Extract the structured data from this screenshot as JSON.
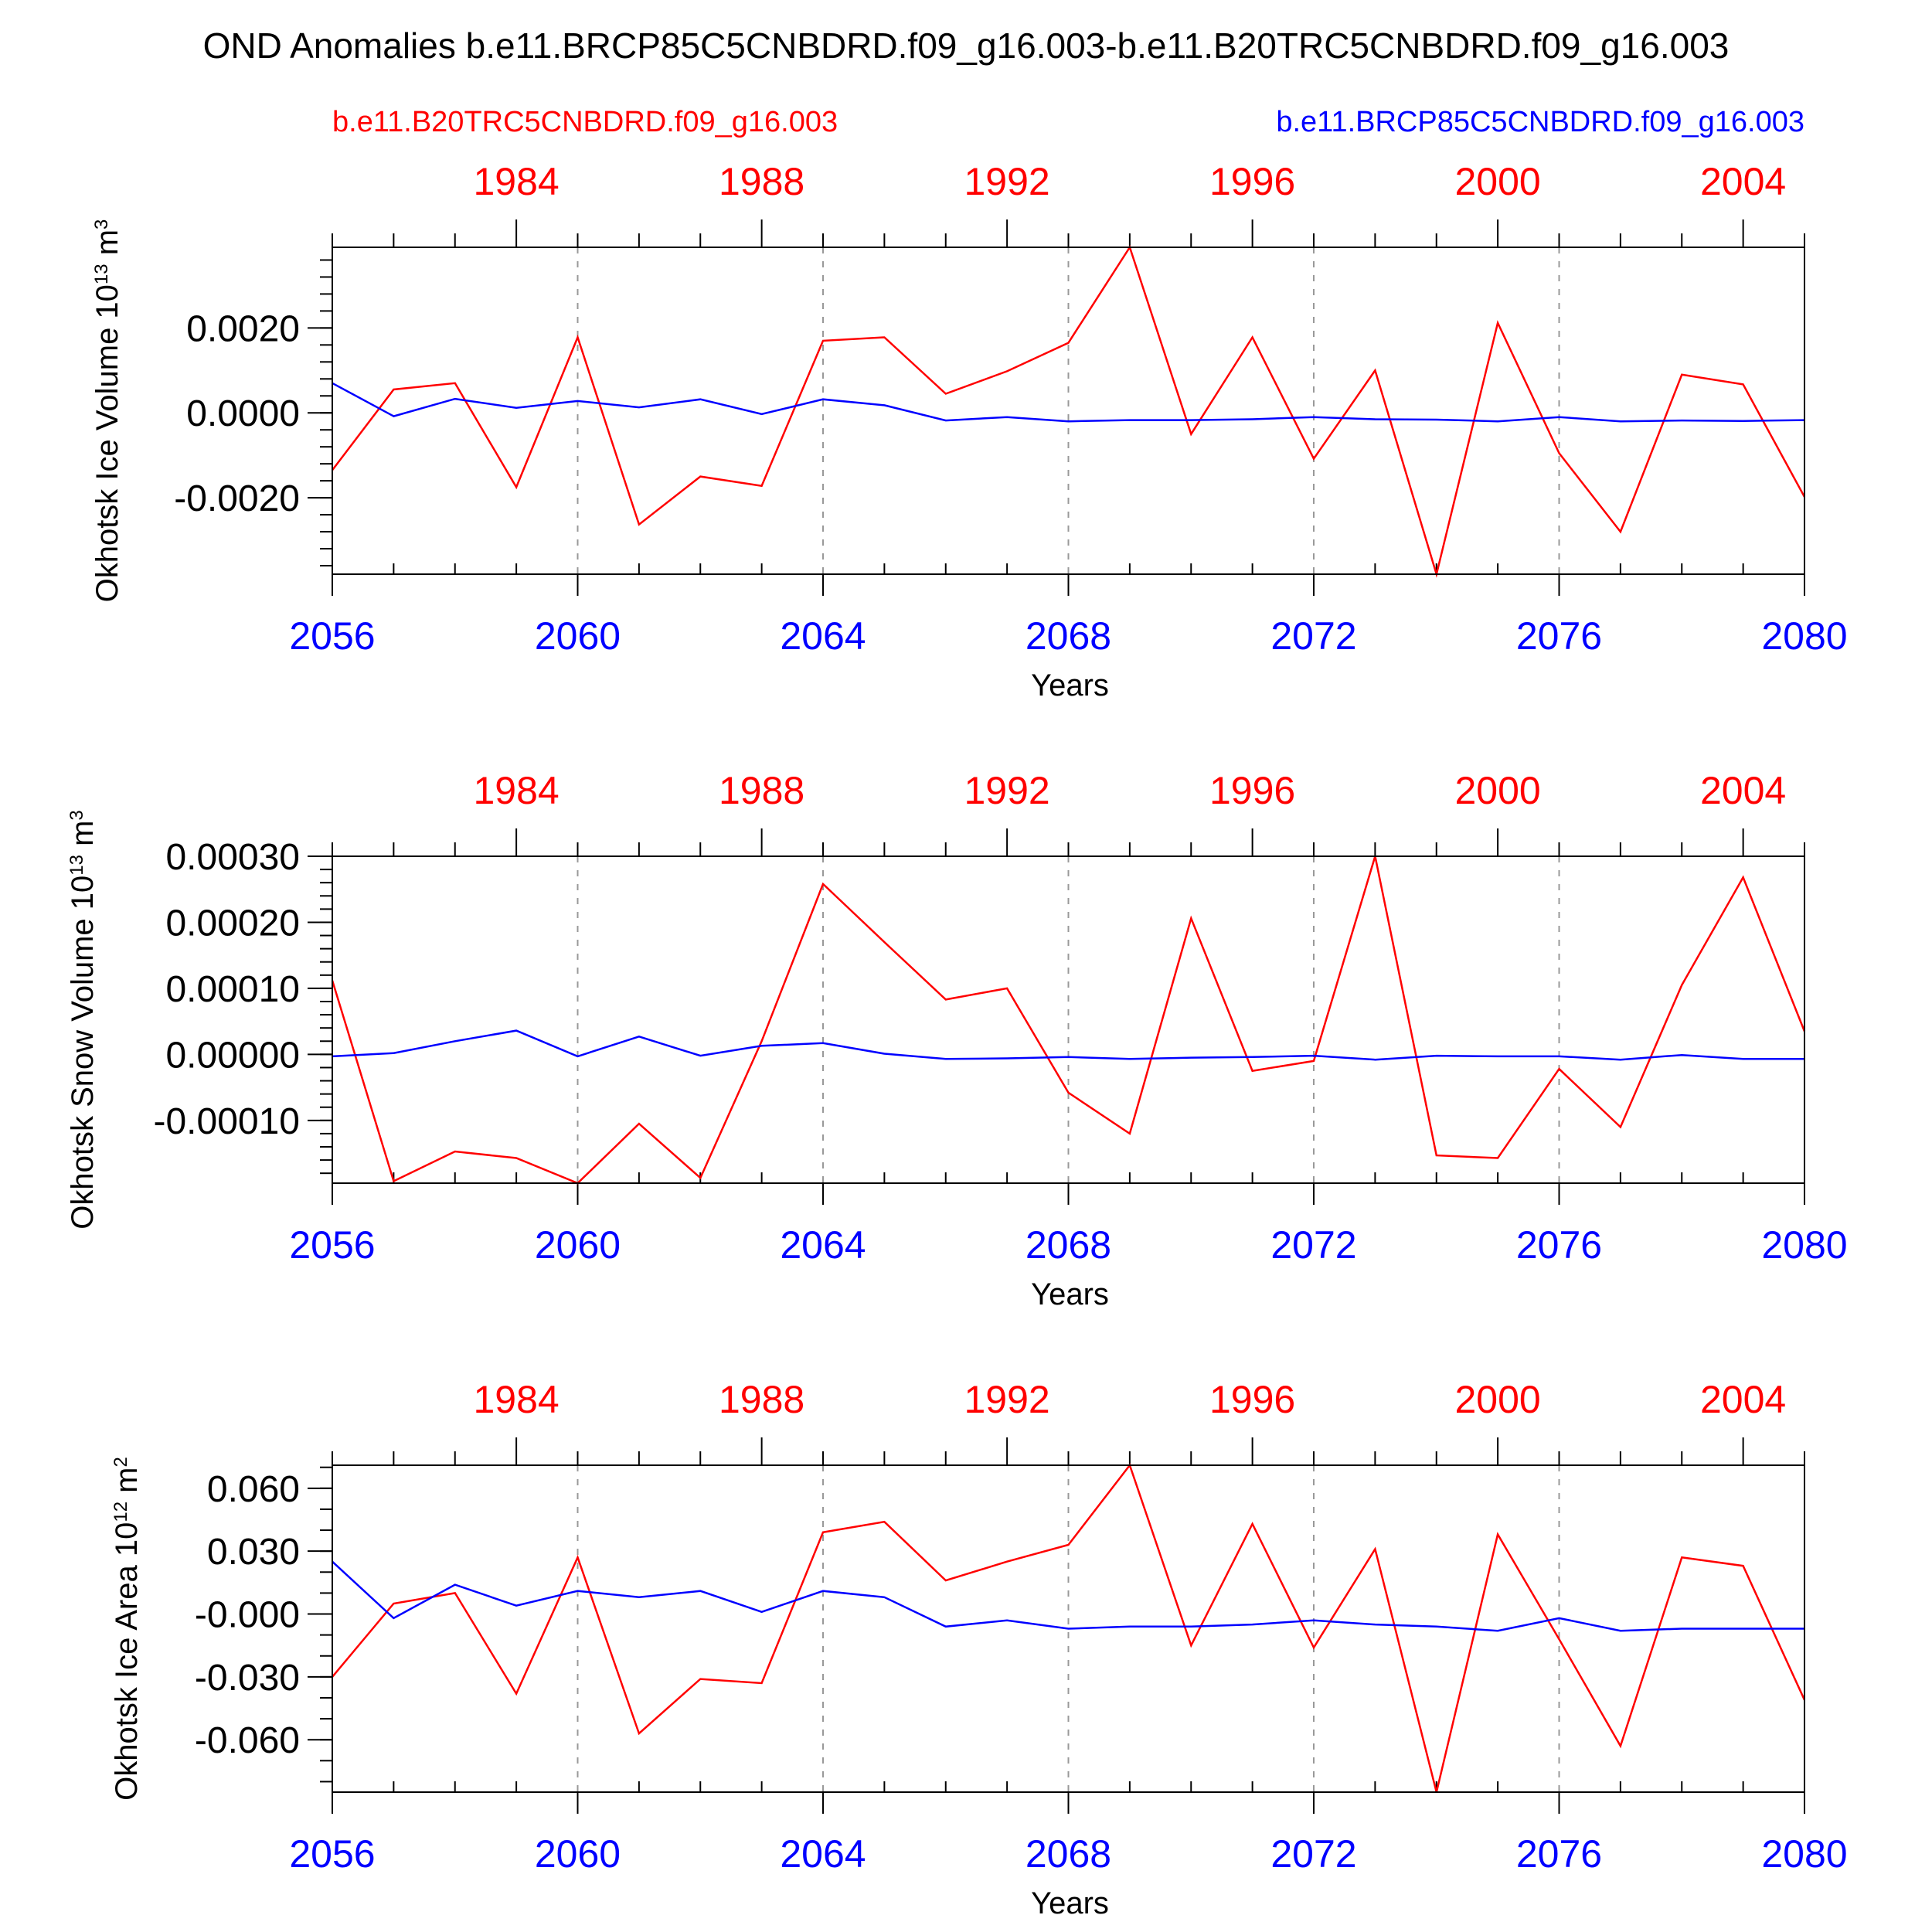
{
  "title": "OND Anomalies b.e11.BRCP85C5CNBDRD.f09_g16.003-b.e11.B20TRC5CNBDRD.f09_g16.003",
  "legend": {
    "left": {
      "text": "b.e11.B20TRC5CNBDRD.f09_g16.003",
      "color": "#ff0000"
    },
    "right": {
      "text": "b.e11.BRCP85C5CNBDRD.f09_g16.003",
      "color": "#0000ff"
    }
  },
  "chart_data": [
    {
      "type": "line",
      "title": "",
      "xlabel": "Years",
      "ylabel": "Okhotsk Ice Volume 10",
      "ylabel_exp": "13",
      "ylabel_unit": " m",
      "ylabel_unit_exp": "3",
      "xlim": [
        2056,
        2080
      ],
      "ylim": [
        -0.0038,
        0.0039
      ],
      "yticks": [
        -0.002,
        0.0,
        0.002
      ],
      "ytick_labels": [
        "-0.0020",
        "0.0000",
        "0.0020"
      ],
      "yminor": 0.0004,
      "xticks_bottom": [
        2056,
        2060,
        2064,
        2068,
        2072,
        2076,
        2080
      ],
      "xticks_bottom_labels": [
        "2056",
        "2060",
        "2064",
        "2068",
        "2072",
        "2076",
        "2080"
      ],
      "xticks_top": [
        1984,
        1988,
        1992,
        1996,
        2000,
        2004
      ],
      "xticks_top_labels": [
        "1984",
        "1988",
        "1992",
        "1996",
        "2000",
        "2004"
      ],
      "x": [
        2056,
        2057,
        2058,
        2059,
        2060,
        2061,
        2062,
        2063,
        2064,
        2065,
        2066,
        2067,
        2068,
        2069,
        2070,
        2071,
        2072,
        2073,
        2074,
        2075,
        2076,
        2077,
        2078,
        2079,
        2080
      ],
      "series": [
        {
          "name": "b.e11.B20TRC5CNBDRD.f09_g16.003",
          "color": "#ff0000",
          "values": [
            -0.00135,
            0.00055,
            0.0007,
            -0.00175,
            0.00178,
            -0.00263,
            -0.0015,
            -0.00172,
            0.0017,
            0.00178,
            0.00045,
            0.00098,
            0.00165,
            0.0039,
            -0.0005,
            0.00178,
            -0.00108,
            0.001,
            -0.0038,
            0.00212,
            -0.00095,
            -0.0028,
            0.0009,
            0.00067,
            -0.00198
          ]
        },
        {
          "name": "b.e11.BRCP85C5CNBDRD.f09_g16.003",
          "color": "#0000ff",
          "values": [
            0.0007,
            -8e-05,
            0.00033,
            0.00012,
            0.00028,
            0.00013,
            0.00032,
            -3e-05,
            0.00032,
            0.00018,
            -0.00018,
            -0.0001,
            -0.0002,
            -0.00017,
            -0.00017,
            -0.00015,
            -0.0001,
            -0.00015,
            -0.00016,
            -0.0002,
            -0.0001,
            -0.0002,
            -0.00018,
            -0.00019,
            -0.00017
          ]
        }
      ]
    },
    {
      "type": "line",
      "title": "",
      "xlabel": "Years",
      "ylabel": "Okhotsk Snow Volume 10",
      "ylabel_exp": "13",
      "ylabel_unit": " m",
      "ylabel_unit_exp": "3",
      "xlim": [
        2056,
        2080
      ],
      "ylim": [
        -0.000195,
        0.0003
      ],
      "yticks": [
        -0.0001,
        0.0,
        0.0001,
        0.0002,
        0.0003
      ],
      "ytick_labels": [
        "-0.00010",
        "0.00000",
        "0.00010",
        "0.00020",
        "0.00030"
      ],
      "yminor": 2e-05,
      "xticks_bottom": [
        2056,
        2060,
        2064,
        2068,
        2072,
        2076,
        2080
      ],
      "xticks_bottom_labels": [
        "2056",
        "2060",
        "2064",
        "2068",
        "2072",
        "2076",
        "2080"
      ],
      "xticks_top": [
        1984,
        1988,
        1992,
        1996,
        2000,
        2004
      ],
      "xticks_top_labels": [
        "1984",
        "1988",
        "1992",
        "1996",
        "2000",
        "2004"
      ],
      "x": [
        2056,
        2057,
        2058,
        2059,
        2060,
        2061,
        2062,
        2063,
        2064,
        2065,
        2066,
        2067,
        2068,
        2069,
        2070,
        2071,
        2072,
        2073,
        2074,
        2075,
        2076,
        2077,
        2078,
        2079,
        2080
      ],
      "series": [
        {
          "name": "b.e11.B20TRC5CNBDRD.f09_g16.003",
          "color": "#ff0000",
          "values": [
            0.000112,
            -0.000192,
            -0.000147,
            -0.000157,
            -0.000195,
            -0.000105,
            -0.000187,
            2e-05,
            0.000258,
            0.00017,
            8.3e-05,
            0.0001,
            -5.8e-05,
            -0.00012,
            0.000206,
            -2.5e-05,
            -1e-05,
            0.0003,
            -0.000153,
            -0.000157,
            -2.2e-05,
            -0.00011,
            0.000105,
            0.000268,
            3.5e-05
          ]
        },
        {
          "name": "b.e11.BRCP85C5CNBDRD.f09_g16.003",
          "color": "#0000ff",
          "values": [
            -3e-06,
            2e-06,
            2e-05,
            3.6e-05,
            -3e-06,
            2.7e-05,
            -2e-06,
            1.3e-05,
            1.7e-05,
            1e-06,
            -7e-06,
            -6e-06,
            -4e-06,
            -7e-06,
            -5e-06,
            -4e-06,
            -2e-06,
            -8e-06,
            -2e-06,
            -3e-06,
            -3e-06,
            -8e-06,
            -1e-06,
            -7e-06,
            -7e-06
          ]
        }
      ]
    },
    {
      "type": "line",
      "title": "",
      "xlabel": "Years",
      "ylabel": "Okhotsk Ice Area 10",
      "ylabel_exp": "12",
      "ylabel_unit": " m",
      "ylabel_unit_exp": "2",
      "xlim": [
        2056,
        2080
      ],
      "ylim": [
        -0.085,
        0.071
      ],
      "yticks": [
        -0.06,
        -0.03,
        0.0,
        0.03,
        0.06
      ],
      "ytick_labels": [
        "-0.060",
        "-0.030",
        "-0.000",
        "0.030",
        "0.060"
      ],
      "yminor": 0.01,
      "xticks_bottom": [
        2056,
        2060,
        2064,
        2068,
        2072,
        2076,
        2080
      ],
      "xticks_bottom_labels": [
        "2056",
        "2060",
        "2064",
        "2068",
        "2072",
        "2076",
        "2080"
      ],
      "xticks_top": [
        1984,
        1988,
        1992,
        1996,
        2000,
        2004
      ],
      "xticks_top_labels": [
        "1984",
        "1988",
        "1992",
        "1996",
        "2000",
        "2004"
      ],
      "x": [
        2056,
        2057,
        2058,
        2059,
        2060,
        2061,
        2062,
        2063,
        2064,
        2065,
        2066,
        2067,
        2068,
        2069,
        2070,
        2071,
        2072,
        2073,
        2074,
        2075,
        2076,
        2077,
        2078,
        2079,
        2080
      ],
      "series": [
        {
          "name": "b.e11.B20TRC5CNBDRD.f09_g16.003",
          "color": "#ff0000",
          "values": [
            -0.03,
            0.005,
            0.01,
            -0.038,
            0.027,
            -0.057,
            -0.031,
            -0.033,
            0.039,
            0.044,
            0.016,
            0.025,
            0.033,
            0.071,
            -0.015,
            0.043,
            -0.016,
            0.031,
            -0.085,
            0.038,
            -0.012,
            -0.063,
            0.027,
            0.023,
            -0.041
          ]
        },
        {
          "name": "b.e11.BRCP85C5CNBDRD.f09_g16.003",
          "color": "#0000ff",
          "values": [
            0.025,
            -0.002,
            0.014,
            0.004,
            0.011,
            0.008,
            0.011,
            0.001,
            0.011,
            0.008,
            -0.006,
            -0.003,
            -0.007,
            -0.006,
            -0.006,
            -0.005,
            -0.003,
            -0.005,
            -0.006,
            -0.008,
            -0.002,
            -0.008,
            -0.007,
            -0.007,
            -0.007
          ]
        }
      ]
    }
  ]
}
